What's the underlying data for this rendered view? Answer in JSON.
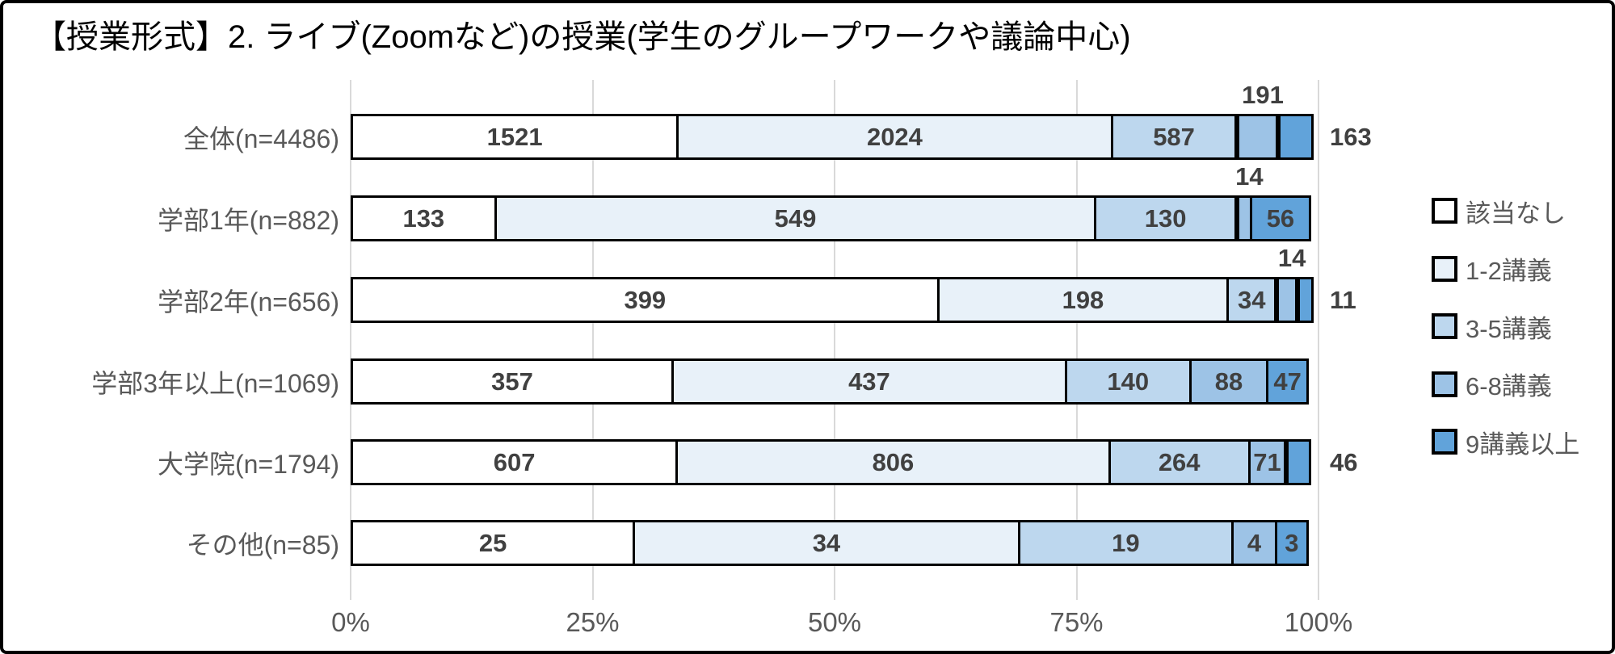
{
  "chart_data": {
    "type": "bar",
    "variant": "100-percent-stacked-horizontal",
    "title": "【授業形式】2. ライブ(Zoomなど)の授業(学生のグループワークや議論中心)",
    "categories": [
      "全体(n=4486)",
      "学部1年(n=882)",
      "学部2年(n=656)",
      "学部3年以上(n=1069)",
      "大学院(n=1794)",
      "その他(n=85)"
    ],
    "series": [
      {
        "name": "該当なし",
        "color": "#ffffff",
        "values": [
          1521,
          133,
          399,
          357,
          607,
          25
        ]
      },
      {
        "name": "1-2講義",
        "color": "#e8f1f9",
        "values": [
          2024,
          549,
          198,
          437,
          806,
          34
        ]
      },
      {
        "name": "3-5講義",
        "color": "#bdd7ee",
        "values": [
          587,
          130,
          34,
          140,
          264,
          19
        ]
      },
      {
        "name": "6-8講義",
        "color": "#9dc3e6",
        "values": [
          191,
          14,
          14,
          88,
          71,
          4
        ]
      },
      {
        "name": "9講義以上",
        "color": "#61a3da",
        "values": [
          163,
          56,
          11,
          47,
          46,
          3
        ]
      }
    ],
    "x_axis": {
      "tick_labels": [
        "0%",
        "25%",
        "50%",
        "75%",
        "100%"
      ],
      "range_percent": [
        0,
        100
      ],
      "gridlines": true
    },
    "legend": {
      "position": "right",
      "entries": [
        "該当なし",
        "1-2講義",
        "3-5講義",
        "6-8講義",
        "9講義以上"
      ]
    },
    "style": {
      "segment_border_color": "#000000",
      "value_label_color": "#404040",
      "axis_label_color": "#595959",
      "gridline_color": "#d9d9d9"
    }
  }
}
